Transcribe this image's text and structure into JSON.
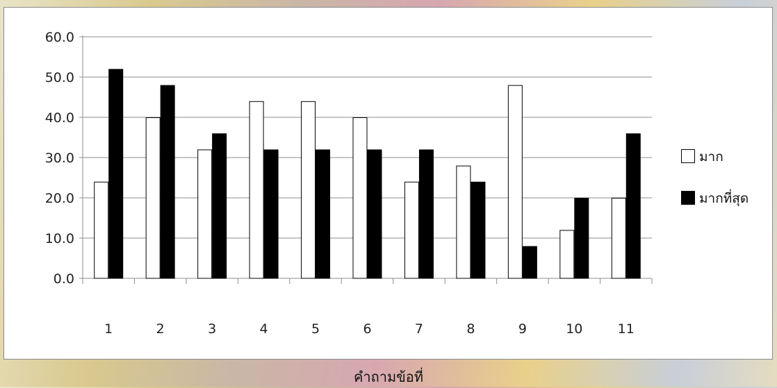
{
  "chart_data": {
    "type": "bar",
    "title": "",
    "xlabel": "คำถามข้อที่",
    "ylabel": "",
    "categories": [
      "1",
      "2",
      "3",
      "4",
      "5",
      "6",
      "7",
      "8",
      "9",
      "10",
      "11"
    ],
    "series": [
      {
        "name": "มาก",
        "color": "#ffffff",
        "values": [
          24,
          40,
          32,
          44,
          44,
          40,
          24,
          28,
          48,
          12,
          20
        ]
      },
      {
        "name": "มากที่สุด",
        "color": "#000000",
        "values": [
          52,
          48,
          36,
          32,
          32,
          32,
          32,
          24,
          8,
          20,
          36
        ]
      }
    ],
    "ylim": [
      0,
      60
    ],
    "yticks": [
      "0.0",
      "10.0",
      "20.0",
      "30.0",
      "40.0",
      "50.0",
      "60.0"
    ],
    "grid": true,
    "legend_position": "right"
  }
}
